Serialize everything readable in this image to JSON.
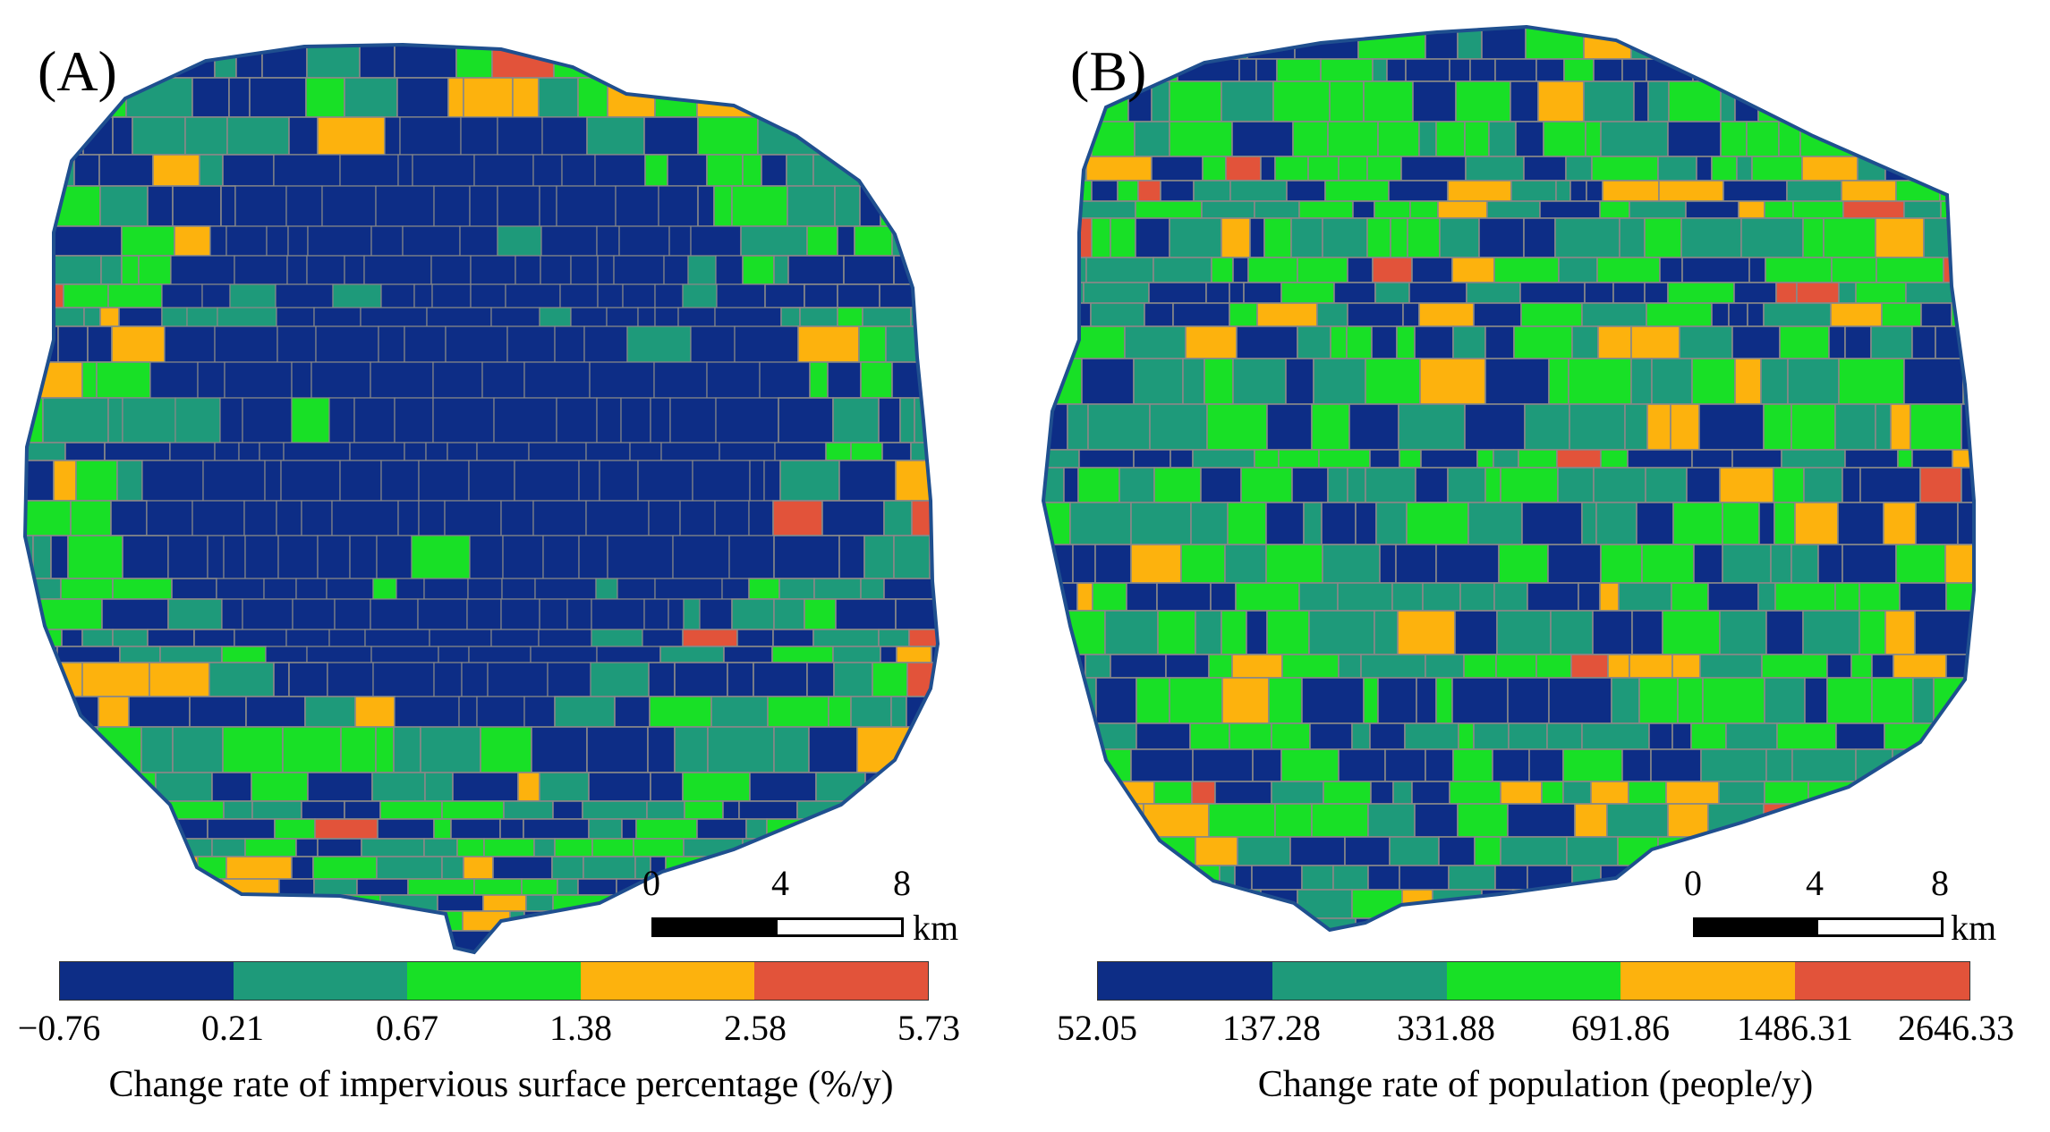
{
  "colors": {
    "class1": "#0d2d86",
    "class2": "#1e9a7a",
    "class3": "#18e026",
    "class4": "#fdb20d",
    "class5": "#e2533a",
    "boundary": "#1f4f8f",
    "streets": "#888888"
  },
  "panels": [
    {
      "label": "(A)",
      "scale": {
        "ticks": [
          "0",
          "4",
          "8"
        ],
        "unit": "km"
      },
      "legend": {
        "breaks": [
          "−0.76",
          "0.21",
          "0.67",
          "1.38",
          "2.58",
          "5.73"
        ],
        "title": "Change rate of impervious surface percentage (%/y)"
      }
    },
    {
      "label": "(B)",
      "scale": {
        "ticks": [
          "0",
          "4",
          "8"
        ],
        "unit": "km"
      },
      "legend": {
        "breaks": [
          "52.05",
          "137.28",
          "331.88",
          "691.86",
          "1486.31",
          "2646.33"
        ],
        "title": "Change rate of population (people/y)"
      }
    }
  ]
}
